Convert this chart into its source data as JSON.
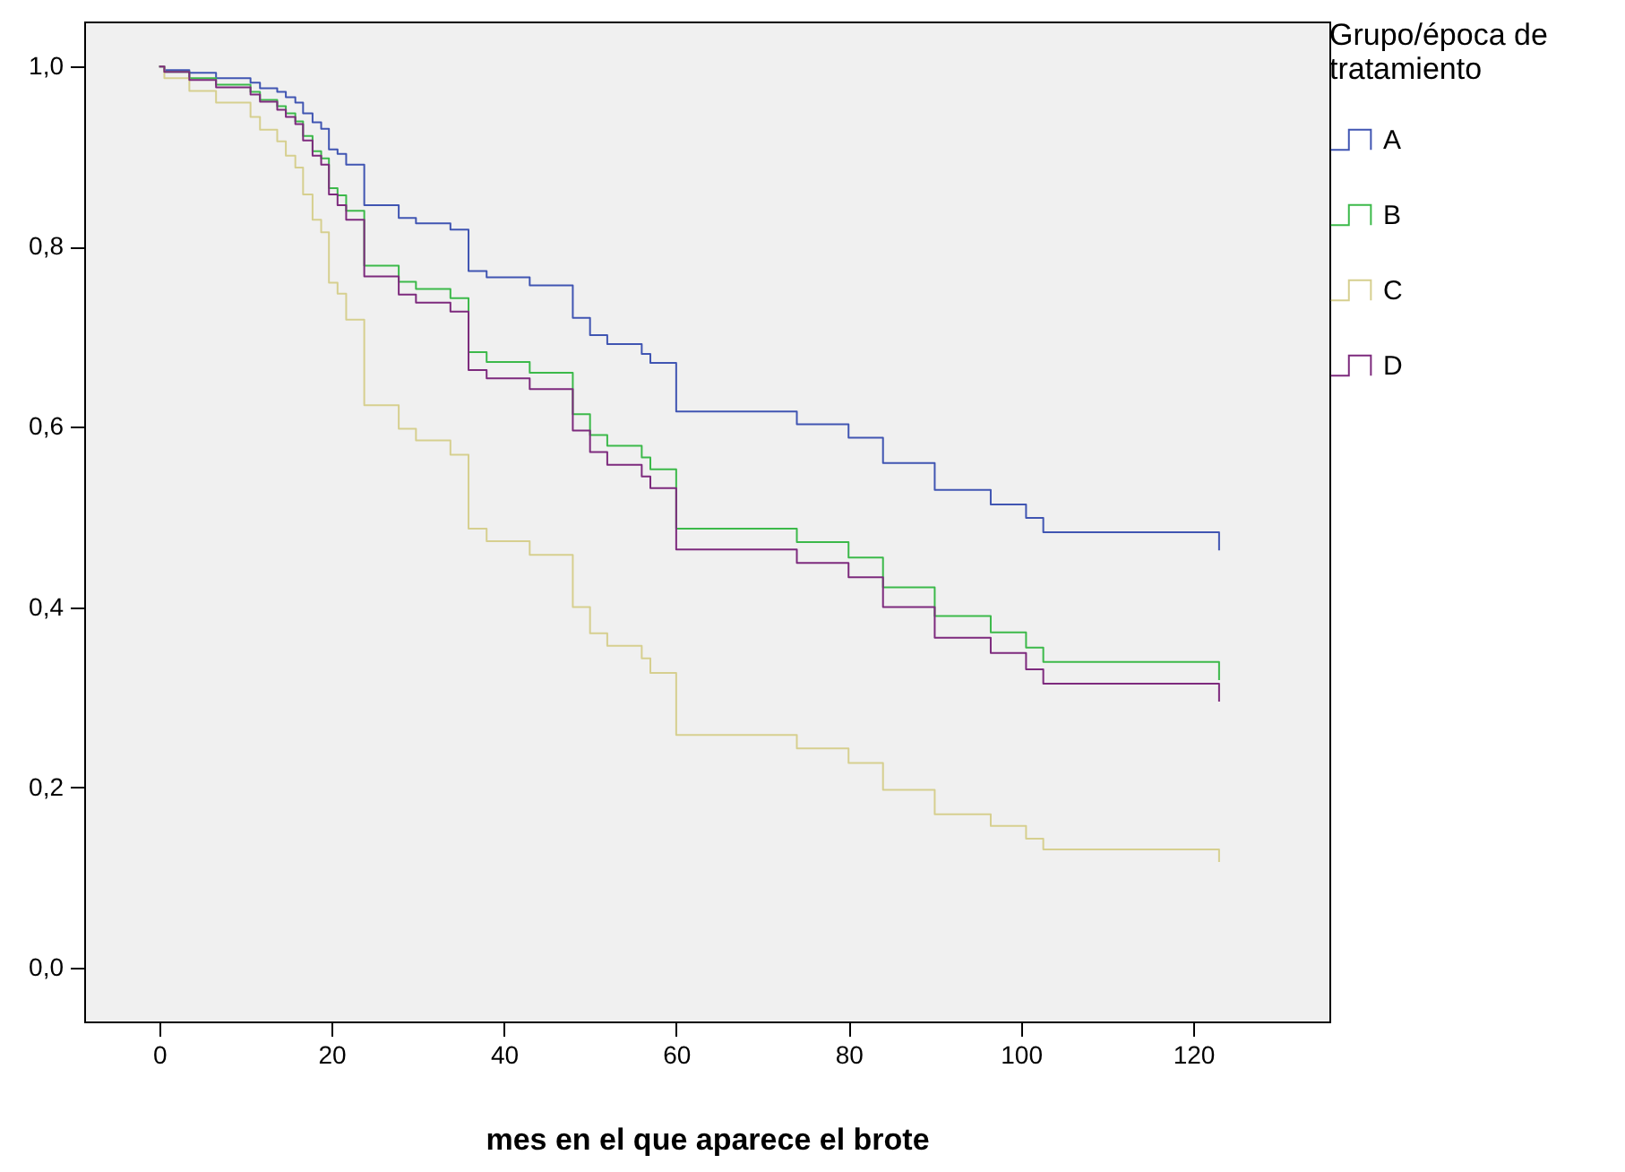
{
  "chart_data": {
    "type": "step",
    "xlabel": "mes en el que aparece el brote",
    "legend_title": "Grupo/época de tratamiento",
    "legend": "top right",
    "grid": false,
    "marker": "none",
    "line_style": "solid",
    "x": [
      0,
      0.6,
      3.5,
      6.6,
      10.6,
      11.7,
      13.7,
      14.7,
      15.8,
      16.7,
      17.8,
      18.8,
      19.7,
      20.7,
      21.7,
      23.8,
      27.8,
      29.8,
      33.8,
      35.9,
      38,
      43,
      48,
      50,
      52,
      56,
      57,
      60,
      74,
      80,
      84,
      90,
      96.5,
      100.6,
      102.6,
      123
    ],
    "xlim": [
      -8.7,
      135.8
    ],
    "xticks": [
      0,
      20,
      40,
      60,
      80,
      100,
      120
    ],
    "ylim": [
      -0.06,
      1.05
    ],
    "yticks": [
      {
        "value": 0,
        "label": "0,0"
      },
      {
        "value": 0.2,
        "label": "0,2"
      },
      {
        "value": 0.4,
        "label": "0,4"
      },
      {
        "value": 0.6,
        "label": "0,6"
      },
      {
        "value": 0.8,
        "label": "0,8"
      },
      {
        "value": 1,
        "label": "1,0"
      }
    ],
    "series": [
      {
        "name": "A",
        "color": "#4055b2",
        "values": [
          1.0,
          0.996,
          0.993,
          0.987,
          0.982,
          0.976,
          0.972,
          0.966,
          0.96,
          0.948,
          0.938,
          0.931,
          0.908,
          0.903,
          0.891,
          0.846,
          0.832,
          0.826,
          0.819,
          0.773,
          0.766,
          0.757,
          0.721,
          0.702,
          0.692,
          0.681,
          0.671,
          0.617,
          0.603,
          0.588,
          0.56,
          0.53,
          0.514,
          0.499,
          0.483,
          0.463
        ]
      },
      {
        "name": "B",
        "color": "#3cb94a",
        "values": [
          1.0,
          0.994,
          0.987,
          0.98,
          0.972,
          0.963,
          0.956,
          0.948,
          0.939,
          0.923,
          0.906,
          0.898,
          0.865,
          0.857,
          0.84,
          0.779,
          0.761,
          0.753,
          0.743,
          0.683,
          0.672,
          0.66,
          0.614,
          0.591,
          0.579,
          0.566,
          0.553,
          0.487,
          0.472,
          0.455,
          0.422,
          0.39,
          0.372,
          0.355,
          0.339,
          0.319
        ]
      },
      {
        "name": "C",
        "color": "#d6cf8f",
        "values": [
          1.0,
          0.987,
          0.973,
          0.96,
          0.944,
          0.93,
          0.917,
          0.901,
          0.888,
          0.858,
          0.83,
          0.816,
          0.76,
          0.748,
          0.719,
          0.624,
          0.598,
          0.585,
          0.569,
          0.487,
          0.473,
          0.458,
          0.4,
          0.371,
          0.357,
          0.343,
          0.327,
          0.258,
          0.243,
          0.227,
          0.197,
          0.17,
          0.157,
          0.143,
          0.131,
          0.117
        ]
      },
      {
        "name": "D",
        "color": "#7d2a7d",
        "values": [
          1.0,
          0.994,
          0.985,
          0.977,
          0.969,
          0.961,
          0.952,
          0.944,
          0.936,
          0.918,
          0.901,
          0.891,
          0.858,
          0.846,
          0.83,
          0.767,
          0.747,
          0.738,
          0.728,
          0.663,
          0.654,
          0.642,
          0.596,
          0.572,
          0.558,
          0.545,
          0.532,
          0.464,
          0.449,
          0.433,
          0.4,
          0.366,
          0.349,
          0.331,
          0.315,
          0.295
        ]
      }
    ]
  }
}
